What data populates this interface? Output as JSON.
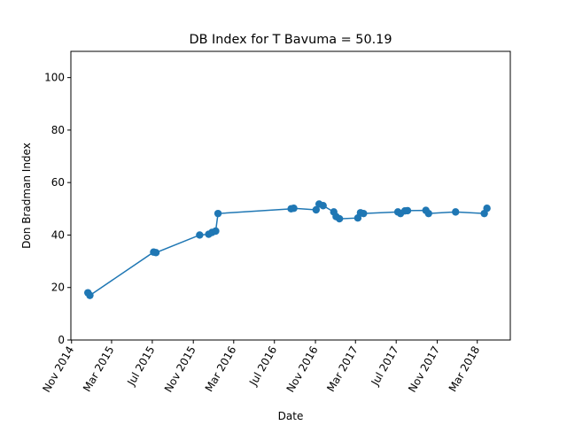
{
  "chart_data": {
    "type": "line",
    "title": "DB Index for T Bavuma = 50.19",
    "xlabel": "Date",
    "ylabel": "Don Bradman Index",
    "ylim": [
      0,
      110
    ],
    "xlim": [
      "2014-10-30",
      "2018-06-08"
    ],
    "grid": false,
    "legend": "none",
    "line_color": "#1f77b4",
    "x_ticks": [
      {
        "date": "2014-11-01",
        "label": "Nov 2014"
      },
      {
        "date": "2015-03-01",
        "label": "Mar 2015"
      },
      {
        "date": "2015-07-01",
        "label": "Jul 2015"
      },
      {
        "date": "2015-11-01",
        "label": "Nov 2015"
      },
      {
        "date": "2016-03-01",
        "label": "Mar 2016"
      },
      {
        "date": "2016-07-01",
        "label": "Jul 2016"
      },
      {
        "date": "2016-11-01",
        "label": "Nov 2016"
      },
      {
        "date": "2017-03-01",
        "label": "Mar 2017"
      },
      {
        "date": "2017-07-01",
        "label": "Jul 2017"
      },
      {
        "date": "2017-11-01",
        "label": "Nov 2017"
      },
      {
        "date": "2018-03-01",
        "label": "Mar 2018"
      }
    ],
    "y_ticks": [
      0,
      20,
      40,
      60,
      80,
      100
    ],
    "series": [
      {
        "points": [
          {
            "x": "2014-12-20",
            "y": 18.0
          },
          {
            "x": "2014-12-26",
            "y": 17.0
          },
          {
            "x": "2015-07-05",
            "y": 33.5
          },
          {
            "x": "2015-07-12",
            "y": 33.3
          },
          {
            "x": "2015-11-20",
            "y": 40.0
          },
          {
            "x": "2015-12-17",
            "y": 40.3
          },
          {
            "x": "2015-12-27",
            "y": 41.0
          },
          {
            "x": "2016-01-07",
            "y": 41.5
          },
          {
            "x": "2016-01-14",
            "y": 48.2
          },
          {
            "x": "2016-08-20",
            "y": 50.0
          },
          {
            "x": "2016-08-28",
            "y": 50.2
          },
          {
            "x": "2016-11-03",
            "y": 49.6
          },
          {
            "x": "2016-11-12",
            "y": 51.8
          },
          {
            "x": "2016-11-24",
            "y": 51.2
          },
          {
            "x": "2016-12-26",
            "y": 48.8
          },
          {
            "x": "2017-01-02",
            "y": 47.0
          },
          {
            "x": "2017-01-12",
            "y": 46.2
          },
          {
            "x": "2017-03-08",
            "y": 46.5
          },
          {
            "x": "2017-03-16",
            "y": 48.5
          },
          {
            "x": "2017-03-25",
            "y": 48.2
          },
          {
            "x": "2017-07-06",
            "y": 48.8
          },
          {
            "x": "2017-07-14",
            "y": 48.2
          },
          {
            "x": "2017-07-27",
            "y": 49.2
          },
          {
            "x": "2017-08-04",
            "y": 49.3
          },
          {
            "x": "2017-09-28",
            "y": 49.4
          },
          {
            "x": "2017-10-06",
            "y": 48.2
          },
          {
            "x": "2017-12-26",
            "y": 48.8
          },
          {
            "x": "2018-03-22",
            "y": 48.2
          },
          {
            "x": "2018-03-30",
            "y": 50.19
          }
        ]
      }
    ]
  }
}
